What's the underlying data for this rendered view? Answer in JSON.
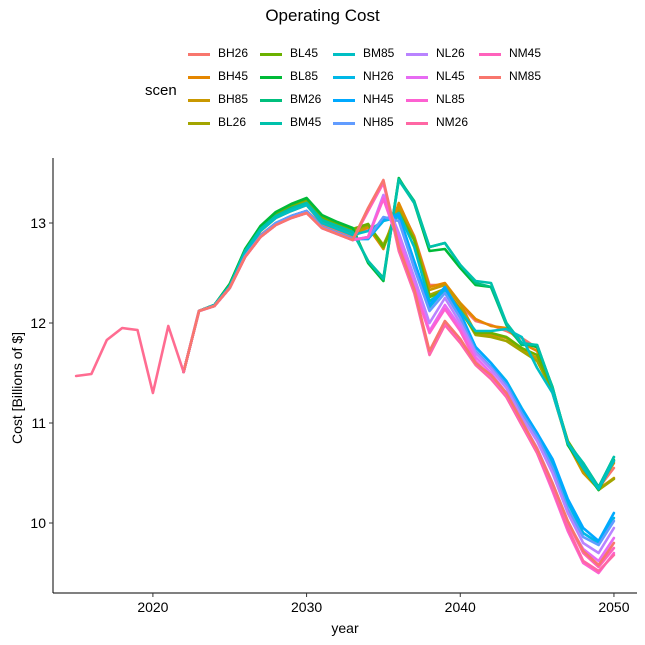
{
  "title": "Operating Cost",
  "legend_title": "scen",
  "chart_data": {
    "type": "line",
    "title": "Operating Cost",
    "xlabel": "year",
    "ylabel": "Cost [Billions of $]",
    "xlim": [
      2013.5,
      2051.5
    ],
    "ylim": [
      9.3,
      13.65
    ],
    "xticks": [
      2020,
      2030,
      2040,
      2050
    ],
    "yticks": [
      10,
      11,
      12,
      13
    ],
    "grid": false,
    "legend_position": "top",
    "history": {
      "x": [
        2015,
        2016,
        2017,
        2018,
        2019,
        2020,
        2021,
        2022
      ],
      "values": [
        11.47,
        11.49,
        11.83,
        11.95,
        11.93,
        11.3,
        11.97,
        11.51
      ]
    },
    "x": [
      2022,
      2023,
      2024,
      2025,
      2026,
      2027,
      2028,
      2029,
      2030,
      2031,
      2032,
      2033,
      2034,
      2035,
      2036,
      2037,
      2038,
      2039,
      2040,
      2041,
      2042,
      2043,
      2044,
      2045,
      2046,
      2047,
      2048,
      2049,
      2050
    ],
    "series": [
      {
        "name": "BH26",
        "color": "#F8766D",
        "values": [
          11.51,
          12.12,
          12.18,
          12.36,
          12.68,
          12.88,
          13.0,
          13.07,
          13.12,
          12.98,
          12.92,
          12.86,
          12.95,
          12.75,
          13.18,
          12.87,
          12.38,
          12.38,
          12.18,
          12.02,
          11.98,
          11.92,
          11.85,
          11.75,
          11.32,
          10.82,
          10.55,
          10.35,
          10.55
        ]
      },
      {
        "name": "BH45",
        "color": "#E58700",
        "values": [
          11.51,
          12.12,
          12.18,
          12.36,
          12.7,
          12.92,
          13.05,
          13.12,
          13.18,
          13.0,
          12.94,
          12.88,
          12.96,
          12.74,
          13.2,
          12.86,
          12.36,
          12.4,
          12.2,
          12.04,
          11.97,
          11.95,
          11.8,
          11.72,
          11.33,
          10.8,
          10.56,
          10.36,
          10.6
        ]
      },
      {
        "name": "BH85",
        "color": "#C99800",
        "values": [
          11.51,
          12.12,
          12.18,
          12.37,
          12.71,
          12.93,
          13.06,
          13.13,
          13.19,
          13.01,
          12.95,
          12.89,
          12.97,
          12.75,
          13.16,
          12.85,
          12.33,
          12.38,
          12.19,
          11.9,
          11.88,
          11.85,
          11.73,
          11.65,
          11.3,
          10.79,
          10.5,
          10.34,
          10.45
        ]
      },
      {
        "name": "BL26",
        "color": "#A3A500",
        "values": [
          11.51,
          12.12,
          12.18,
          12.38,
          12.72,
          12.95,
          13.08,
          13.16,
          13.22,
          13.04,
          12.98,
          12.92,
          12.98,
          12.78,
          13.12,
          12.84,
          12.28,
          12.34,
          12.14,
          11.88,
          11.86,
          11.82,
          11.72,
          11.62,
          11.32,
          10.8,
          10.54,
          10.33,
          10.44
        ]
      },
      {
        "name": "BL45",
        "color": "#6BB100",
        "values": [
          11.51,
          12.12,
          12.18,
          12.39,
          12.73,
          12.96,
          13.1,
          13.18,
          13.24,
          13.06,
          13.0,
          12.94,
          12.99,
          12.76,
          13.1,
          12.83,
          12.26,
          12.32,
          12.12,
          11.9,
          11.9,
          11.86,
          11.75,
          11.68,
          11.33,
          10.82,
          10.58,
          10.35,
          10.62
        ]
      },
      {
        "name": "BL85",
        "color": "#00BA38",
        "values": [
          11.51,
          12.12,
          12.18,
          12.39,
          12.74,
          12.97,
          13.11,
          13.19,
          13.25,
          13.08,
          13.01,
          12.95,
          12.6,
          12.42,
          13.45,
          13.2,
          12.72,
          12.74,
          12.55,
          12.38,
          12.36,
          12.0,
          11.8,
          11.76,
          11.36,
          10.78,
          10.55,
          10.33,
          10.63
        ]
      },
      {
        "name": "BM26",
        "color": "#00BF7D",
        "values": [
          11.51,
          12.12,
          12.18,
          12.37,
          12.72,
          12.94,
          13.07,
          13.15,
          13.2,
          13.03,
          12.97,
          12.91,
          12.62,
          12.45,
          13.44,
          13.22,
          12.76,
          12.8,
          12.58,
          12.4,
          12.36,
          11.98,
          11.78,
          11.78,
          11.35,
          10.8,
          10.6,
          10.36,
          10.66
        ]
      },
      {
        "name": "BM45",
        "color": "#00C1AB",
        "values": [
          11.51,
          12.12,
          12.18,
          12.37,
          12.72,
          12.94,
          13.07,
          13.14,
          13.2,
          13.03,
          12.97,
          12.91,
          12.62,
          12.44,
          13.43,
          13.2,
          12.76,
          12.8,
          12.58,
          12.42,
          12.4,
          12.0,
          11.8,
          11.78,
          11.35,
          10.8,
          10.6,
          10.35,
          10.66
        ]
      },
      {
        "name": "BM85",
        "color": "#00BFC4",
        "values": [
          11.51,
          12.12,
          12.18,
          12.37,
          12.7,
          12.92,
          13.05,
          13.12,
          13.18,
          13.0,
          12.94,
          12.88,
          12.92,
          13.02,
          13.1,
          12.76,
          12.22,
          12.32,
          12.12,
          11.92,
          11.92,
          11.94,
          11.86,
          11.55,
          11.3,
          10.8,
          10.55,
          10.34,
          10.62
        ]
      },
      {
        "name": "NH26",
        "color": "#00B8E7",
        "values": [
          11.51,
          12.12,
          12.17,
          12.35,
          12.67,
          12.87,
          13.0,
          13.07,
          13.12,
          12.96,
          12.9,
          12.84,
          12.84,
          13.02,
          13.06,
          12.6,
          12.16,
          12.34,
          12.08,
          11.76,
          11.6,
          11.42,
          11.15,
          10.9,
          10.6,
          10.2,
          9.9,
          9.8,
          10.05
        ]
      },
      {
        "name": "NH45",
        "color": "#00A9FF",
        "values": [
          11.51,
          12.12,
          12.17,
          12.35,
          12.67,
          12.87,
          13.0,
          13.07,
          13.12,
          12.96,
          12.9,
          12.84,
          12.84,
          13.04,
          13.08,
          12.62,
          12.18,
          12.36,
          12.1,
          11.76,
          11.6,
          11.4,
          11.14,
          10.9,
          10.64,
          10.24,
          9.95,
          9.82,
          10.1
        ]
      },
      {
        "name": "NH85",
        "color": "#619CFF",
        "values": [
          11.51,
          12.12,
          12.17,
          12.35,
          12.67,
          12.87,
          13.0,
          13.07,
          13.12,
          12.96,
          12.9,
          12.84,
          12.85,
          13.06,
          13.02,
          12.55,
          12.12,
          12.3,
          12.05,
          11.72,
          11.56,
          11.38,
          11.1,
          10.86,
          10.55,
          10.14,
          9.86,
          9.78,
          10.02
        ]
      },
      {
        "name": "NL26",
        "color": "#B983FF",
        "values": [
          11.51,
          12.12,
          12.17,
          12.35,
          12.66,
          12.86,
          12.98,
          13.05,
          13.1,
          12.95,
          12.89,
          12.83,
          12.86,
          13.28,
          12.9,
          12.46,
          12.0,
          12.25,
          12.0,
          11.7,
          11.54,
          11.35,
          11.06,
          10.82,
          10.5,
          10.1,
          9.8,
          9.7,
          9.95
        ]
      },
      {
        "name": "NL45",
        "color": "#E76BF3",
        "values": [
          11.51,
          12.12,
          12.17,
          12.35,
          12.66,
          12.86,
          12.98,
          13.05,
          13.1,
          12.95,
          12.89,
          12.83,
          12.86,
          13.26,
          12.86,
          12.4,
          11.92,
          12.18,
          11.96,
          11.66,
          11.5,
          11.3,
          11.02,
          10.75,
          10.4,
          10.0,
          9.74,
          9.62,
          9.85
        ]
      },
      {
        "name": "NL85",
        "color": "#FD61D1",
        "values": [
          11.51,
          12.12,
          12.17,
          12.35,
          12.66,
          12.86,
          12.98,
          13.05,
          13.1,
          12.95,
          12.89,
          12.83,
          12.86,
          13.24,
          12.8,
          12.35,
          11.9,
          12.14,
          11.92,
          11.62,
          11.46,
          11.26,
          10.98,
          10.7,
          10.32,
          9.92,
          9.6,
          9.5,
          9.7
        ]
      },
      {
        "name": "NM26",
        "color": "#FF67A4",
        "values": [
          11.51,
          12.12,
          12.17,
          12.35,
          12.66,
          12.86,
          12.98,
          13.05,
          13.1,
          12.95,
          12.89,
          12.83,
          13.14,
          13.42,
          12.72,
          12.3,
          11.68,
          11.98,
          11.8,
          11.58,
          11.44,
          11.26,
          10.98,
          10.7,
          10.35,
          9.95,
          9.62,
          9.52,
          9.68
        ]
      },
      {
        "name": "NM45",
        "color": "#FF62BC",
        "values": [
          11.51,
          12.12,
          12.17,
          12.35,
          12.66,
          12.86,
          12.98,
          13.05,
          13.1,
          12.95,
          12.89,
          12.83,
          13.12,
          13.4,
          12.74,
          12.32,
          11.7,
          12.0,
          11.82,
          11.6,
          11.46,
          11.28,
          11.0,
          10.72,
          10.38,
          10.0,
          9.7,
          9.56,
          9.75
        ]
      },
      {
        "name": "NM85",
        "color": "#F8766D",
        "values": [
          11.51,
          12.12,
          12.17,
          12.35,
          12.66,
          12.86,
          12.98,
          13.05,
          13.1,
          12.95,
          12.89,
          12.83,
          13.15,
          13.43,
          12.76,
          12.34,
          11.72,
          12.02,
          11.84,
          11.6,
          11.48,
          11.3,
          11.02,
          10.74,
          10.4,
          10.02,
          9.72,
          9.58,
          9.8
        ]
      }
    ]
  }
}
